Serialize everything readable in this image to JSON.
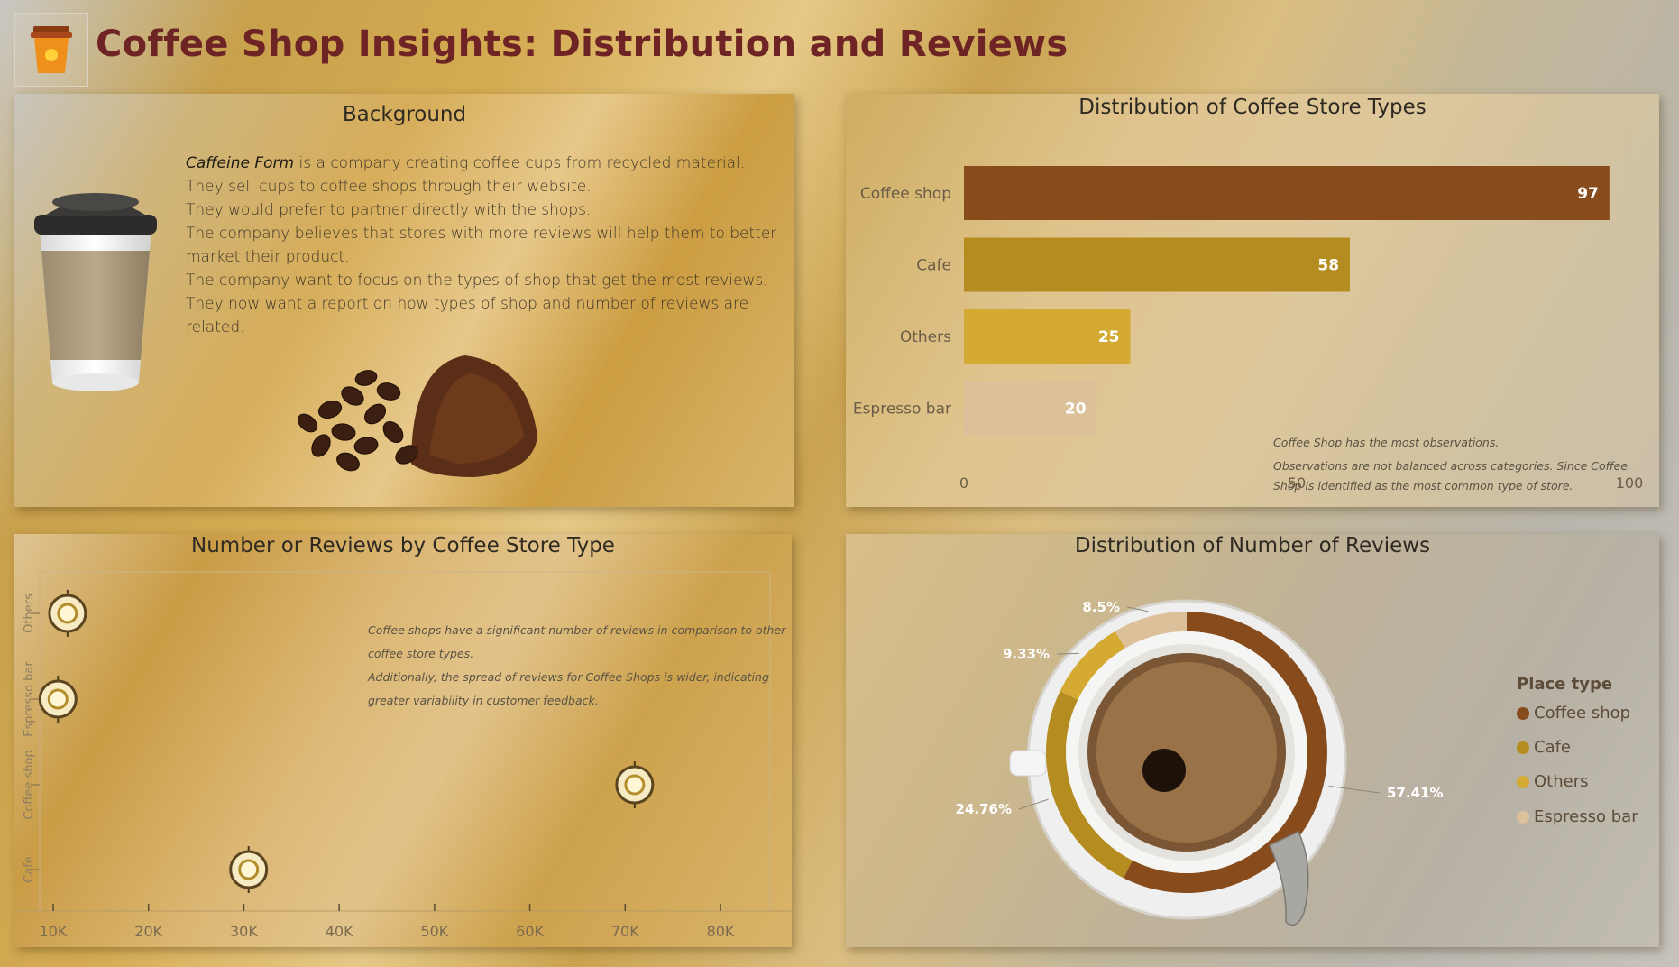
{
  "header": {
    "title": "Coffee Shop Insights: Distribution and Reviews",
    "logo_icon": "coffee-cup-icon"
  },
  "background_panel": {
    "title": "Background",
    "company": "Caffeine Form",
    "line1_rest": " is a company creating coffee cups from recycled material.",
    "lines": [
      "They sell cups to coffee shops through their website.",
      "They would prefer to partner directly with the shops.",
      "The company believes that stores with more reviews will help them to better",
      "market their product.",
      "The company want to focus on the types of shop that get the most reviews.",
      "They now want a report on how types of shop and number of reviews are",
      "related."
    ],
    "images": [
      "takeaway-cup-image",
      "coffee-beans-image"
    ]
  },
  "colors": {
    "coffee_shop": "#874b1c",
    "cafe": "#b58c1f",
    "others": "#d4aa33",
    "espresso_bar": "#dcc099",
    "title_red": "#6e2424"
  },
  "chart_data": [
    {
      "type": "bar",
      "orientation": "horizontal",
      "title": "Distribution of Coffee Store Types",
      "categories": [
        "Coffee shop",
        "Cafe",
        "Others",
        "Espresso bar"
      ],
      "values": [
        97,
        58,
        25,
        20
      ],
      "xlim": [
        0,
        100
      ],
      "xticks": [
        "0",
        "50",
        "100"
      ],
      "annotations": [
        "Coffee Shop has the most observations.",
        "Observations are not balanced across categories. Since Coffee",
        "Shop is identified as the most common type of store."
      ]
    },
    {
      "type": "scatter",
      "title": "Number or Reviews by Coffee Store Type",
      "categories": [
        "Others",
        "Espresso bar",
        "Coffee shop",
        "Cafe"
      ],
      "points": [
        {
          "category": "Others",
          "x": 11500
        },
        {
          "category": "Espresso bar",
          "x": 10500
        },
        {
          "category": "Coffee shop",
          "x": 71000
        },
        {
          "category": "Cafe",
          "x": 30500
        }
      ],
      "xlim": [
        10000,
        80000
      ],
      "xticks": [
        "10K",
        "20K",
        "30K",
        "40K",
        "50K",
        "60K",
        "70K",
        "80K"
      ],
      "annotations": [
        "Coffee shops have a significant number of reviews in comparison to other",
        "coffee store types.",
        "Additionally, the spread of reviews for Coffee Shops is wider, indicating",
        "greater variability in customer feedback."
      ]
    },
    {
      "type": "pie",
      "title": "Distribution of Number of Reviews",
      "legend_title": "Place type",
      "legend_position": "right",
      "categories": [
        "Coffee shop",
        "Cafe",
        "Others",
        "Espresso bar"
      ],
      "values": [
        57.41,
        24.76,
        9.33,
        8.5
      ],
      "labels": [
        "57.41%",
        "24.76%",
        "9.33%",
        "8.5%"
      ]
    }
  ]
}
